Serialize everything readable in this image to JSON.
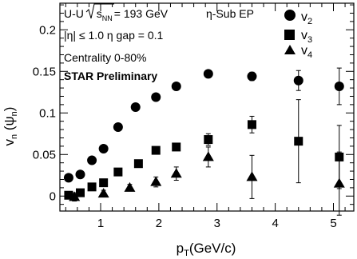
{
  "chart_data": {
    "type": "scatter",
    "xlabel": "p_T(GeV/c)",
    "ylabel": "v_n (Ψ_n)",
    "xlim": [
      0.3,
      5.35
    ],
    "ylim": [
      -0.018,
      0.232
    ],
    "xticks": [
      1,
      2,
      3,
      4,
      5
    ],
    "yticks": [
      0,
      0.05,
      0.1,
      0.15,
      0.2
    ],
    "ytick_labels": [
      "0",
      "0.05",
      "0.1",
      "0.15",
      "0.2"
    ],
    "annotations": {
      "system": "U-U",
      "energy_label": "s",
      "energy_sub": "NN",
      "energy_value": "= 193 GeV",
      "method": "η-Sub EP",
      "eta_cut": "|η| ≤ 1.0  η gap = 0.1",
      "centrality": "Centrality 0-80%",
      "status": "STAR Preliminary"
    },
    "series": [
      {
        "name": "v2",
        "label_main": "v",
        "label_sub": "2",
        "marker": "circle",
        "x": [
          0.45,
          0.65,
          0.85,
          1.05,
          1.3,
          1.6,
          1.95,
          2.3,
          2.85,
          3.6,
          4.4,
          5.1
        ],
        "y": [
          0.022,
          0.026,
          0.043,
          0.057,
          0.083,
          0.107,
          0.119,
          0.132,
          0.147,
          0.144,
          0.139,
          0.132
        ],
        "err": [
          0,
          0,
          0,
          0,
          0,
          0,
          0,
          0,
          0,
          0.005,
          0.012,
          0.022
        ]
      },
      {
        "name": "v3",
        "label_main": "v",
        "label_sub": "3",
        "marker": "square",
        "x": [
          0.45,
          0.65,
          0.85,
          1.05,
          1.3,
          1.65,
          1.95,
          2.3,
          2.85,
          3.6,
          4.4,
          5.1
        ],
        "y": [
          0.001,
          0.004,
          0.011,
          0.016,
          0.029,
          0.039,
          0.055,
          0.059,
          0.068,
          0.086,
          0.066,
          0.047
        ],
        "err": [
          0,
          0,
          0,
          0,
          0,
          0,
          0,
          0.004,
          0.007,
          0.01,
          0.05,
          0.038
        ]
      },
      {
        "name": "v4",
        "label_main": "v",
        "label_sub": "4",
        "marker": "triangle",
        "x": [
          0.55,
          1.05,
          1.5,
          1.95,
          2.3,
          2.85,
          3.6,
          5.1
        ],
        "y": [
          -0.001,
          0.003,
          0.01,
          0.017,
          0.027,
          0.047,
          0.023,
          0.015
        ],
        "err": [
          0.005,
          0.004,
          0.004,
          0.006,
          0.008,
          0.012,
          0.026,
          0.038
        ]
      }
    ]
  }
}
